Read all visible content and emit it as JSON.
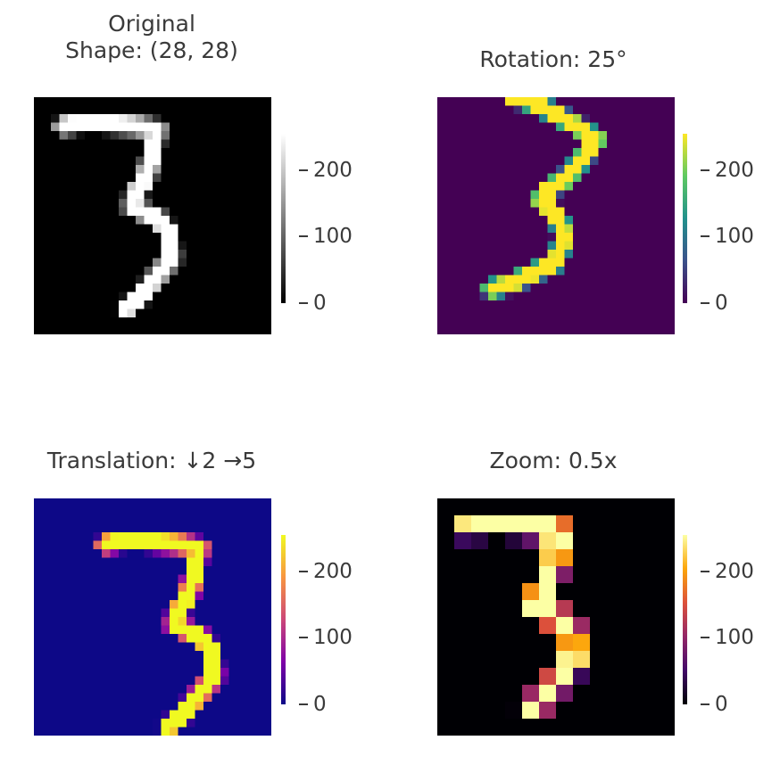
{
  "chart_data": [
    {
      "type": "heatmap",
      "title_lines": [
        "Original",
        "Shape: (28, 28)"
      ],
      "colormap": "gray",
      "colorbar": {
        "ticks": [
          0,
          100,
          200
        ],
        "range": [
          0,
          255
        ]
      },
      "image_size": [
        28,
        28
      ]
    },
    {
      "type": "heatmap",
      "title_lines": [
        "Rotation: 25°"
      ],
      "colormap": "viridis",
      "colorbar": {
        "ticks": [
          0,
          100,
          200
        ],
        "range": [
          0,
          255
        ]
      },
      "image_size": [
        28,
        28
      ]
    },
    {
      "type": "heatmap",
      "title_lines": [
        "Translation: ↓2 →5"
      ],
      "colormap": "plasma",
      "colorbar": {
        "ticks": [
          0,
          100,
          200
        ],
        "range": [
          0,
          255
        ]
      },
      "image_size": [
        28,
        28
      ]
    },
    {
      "type": "heatmap",
      "title_lines": [
        "Zoom: 0.5x"
      ],
      "colormap": "inferno",
      "colorbar": {
        "ticks": [
          0,
          100,
          200
        ],
        "range": [
          0,
          255
        ]
      },
      "image_size": [
        14,
        14
      ]
    }
  ],
  "colors": {
    "gray": [
      "#000000",
      "#ffffff"
    ],
    "viridis": [
      "#440154",
      "#3b528b",
      "#21918c",
      "#5ec962",
      "#fde725"
    ],
    "plasma": [
      "#0d0887",
      "#7e03a8",
      "#cc4778",
      "#f89540",
      "#f0f921"
    ],
    "inferno": [
      "#000004",
      "#420a68",
      "#932667",
      "#dd513a",
      "#fca50a",
      "#fcffa4"
    ]
  }
}
